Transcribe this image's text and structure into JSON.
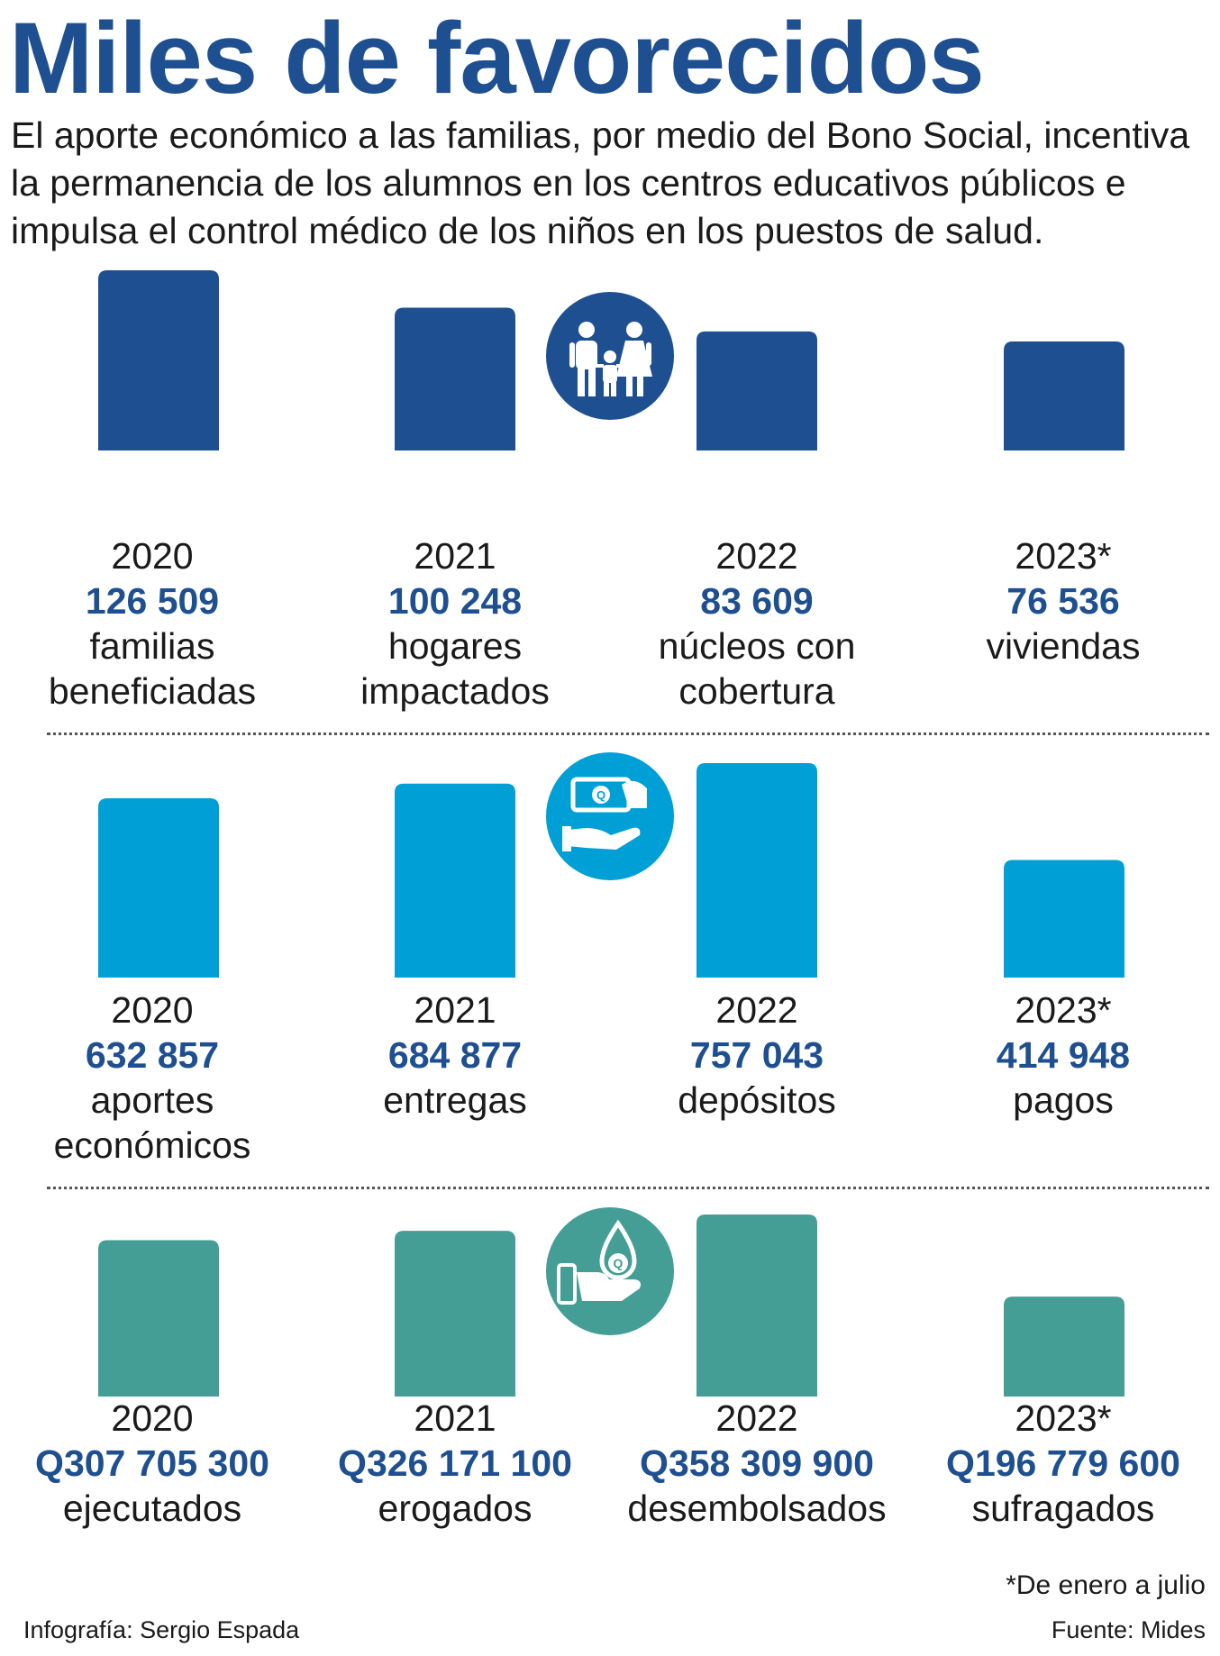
{
  "title": "Miles de favorecidos",
  "intro": "El aporte económico a las familias, por medio del Bono Social, incentiva la permanencia de los alumnos en los centros educativos públicos e impulsa el control médico de los niños en los puestos de salud.",
  "colors": {
    "title": "#1e4f91",
    "panel1": "#1e4f91",
    "panel2": "#00a0d6",
    "panel3": "#449e95",
    "value_text": "#1e4f91"
  },
  "icons": [
    "family-icon",
    "money-hand-icon",
    "coin-drop-hand-icon"
  ],
  "chart_data": [
    {
      "type": "bar",
      "categories": [
        "2020",
        "2021",
        "2022",
        "2023*"
      ],
      "values": [
        126509,
        100248,
        83609,
        76536
      ],
      "value_labels": [
        "126 509",
        "100 248",
        "83 609",
        "76 536"
      ],
      "descriptions": [
        "familias beneficiadas",
        "hogares impactados",
        "núcleos con cobertura",
        "viviendas"
      ],
      "color": "#1e4f91"
    },
    {
      "type": "bar",
      "categories": [
        "2020",
        "2021",
        "2022",
        "2023*"
      ],
      "values": [
        632857,
        684877,
        757043,
        414948
      ],
      "value_labels": [
        "632 857",
        "684 877",
        "757 043",
        "414 948"
      ],
      "descriptions": [
        "aportes económicos",
        "entregas",
        "depósitos",
        "pagos"
      ],
      "color": "#00a0d6"
    },
    {
      "type": "bar",
      "categories": [
        "2020",
        "2021",
        "2022",
        "2023*"
      ],
      "values": [
        307705300,
        326171100,
        358309900,
        196779600
      ],
      "value_labels": [
        "Q307 705 300",
        "Q326 171 100",
        "Q358 309 900",
        "Q196 779 600"
      ],
      "descriptions": [
        "ejecutados",
        "erogados",
        "desembolsados",
        "sufragados"
      ],
      "color": "#449e95"
    }
  ],
  "footnote": "*De enero a julio",
  "credit": "Infografía: Sergio Espada",
  "source": "Fuente: Mides"
}
